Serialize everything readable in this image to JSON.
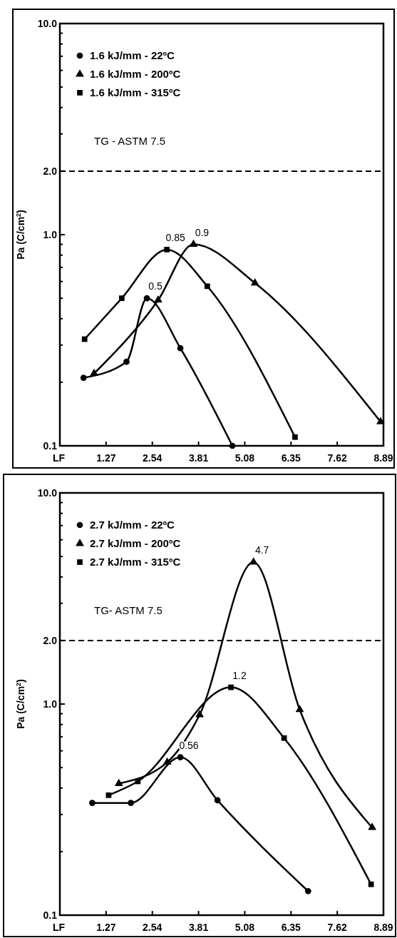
{
  "chart_data": [
    {
      "type": "line",
      "xlabel": "LF",
      "ylabel": "Pa (C/cm$^{2}$)",
      "log": "y",
      "xlim": [
        0,
        8.89
      ],
      "ylim": [
        0.1,
        10
      ],
      "xticks": [
        1.27,
        2.54,
        3.81,
        5.08,
        6.35,
        7.62,
        8.89
      ],
      "yticks": [
        0.1,
        {
          "value": 0.2,
          "label": null
        },
        {
          "value": 0.3,
          "label": null
        },
        {
          "value": 0.4,
          "label": null
        },
        {
          "value": 0.5,
          "label": null
        },
        {
          "value": 0.6,
          "label": null
        },
        {
          "value": 0.7,
          "label": null
        },
        {
          "value": 0.8,
          "label": null
        },
        {
          "value": 0.9,
          "label": null
        },
        {
          "value": 1,
          "label": "1.0"
        },
        {
          "value": 2,
          "label": "2.0"
        },
        {
          "value": 3,
          "label": null
        },
        {
          "value": 4,
          "label": null
        },
        {
          "value": 5,
          "label": null
        },
        {
          "value": 6,
          "label": null
        },
        {
          "value": 7,
          "label": null
        },
        {
          "value": 8,
          "label": null
        },
        {
          "value": 9,
          "label": null
        },
        {
          "value": 10,
          "label": "10.0"
        }
      ],
      "legend": "top left",
      "grid": false,
      "series": [
        {
          "name": "1.6 kJ/mm - 22ºC",
          "color": "#000000",
          "marker": "circle",
          "x": [
            0.65,
            1.83,
            2.39,
            3.31,
            4.74
          ],
          "values": [
            0.21,
            0.25,
            0.5,
            0.29,
            0.1
          ]
        },
        {
          "name": "1.6 kJ/mm - 200ºC",
          "color": "#000000",
          "marker": "triangle",
          "x": [
            0.94,
            2.7,
            3.67,
            5.36,
            8.81
          ],
          "values": [
            0.22,
            0.49,
            0.9,
            0.59,
            0.13
          ]
        },
        {
          "name": "1.6 kJ/mm - 315ºC",
          "color": "#000000",
          "marker": "square",
          "x": [
            0.68,
            1.7,
            2.94,
            4.05,
            6.46
          ],
          "values": [
            0.32,
            0.5,
            0.85,
            0.57,
            0.11
          ]
        }
      ],
      "ref_lines": [
        {
          "axis": "y",
          "value": 2,
          "line_style": "dashed",
          "color": "#000000"
        }
      ],
      "annotations": [
        "TG - ASTM 7.5",
        {
          "text": "0.5",
          "x": 2.39,
          "y": 0.5
        },
        {
          "text": "0.85",
          "x": 2.94,
          "y": 0.85
        },
        {
          "text": "0.9",
          "x": 3.67,
          "y": 0.9
        }
      ]
    },
    {
      "type": "line",
      "xlabel": "LF",
      "ylabel": "Pa (C/cm$^{2}$)",
      "log": "y",
      "xlim": [
        0,
        8.89
      ],
      "ylim": [
        0.1,
        10
      ],
      "xticks": [
        1.27,
        2.54,
        3.81,
        5.08,
        6.35,
        7.62,
        8.89
      ],
      "yticks": [
        0.1,
        {
          "value": 0.2,
          "label": null
        },
        {
          "value": 0.3,
          "label": null
        },
        {
          "value": 0.4,
          "label": null
        },
        {
          "value": 0.5,
          "label": null
        },
        {
          "value": 0.6,
          "label": null
        },
        {
          "value": 0.7,
          "label": null
        },
        {
          "value": 0.8,
          "label": null
        },
        {
          "value": 0.9,
          "label": null
        },
        {
          "value": 1,
          "label": "1.0"
        },
        {
          "value": 2,
          "label": "2.0"
        },
        {
          "value": 3,
          "label": null
        },
        {
          "value": 4,
          "label": null
        },
        {
          "value": 5,
          "label": null
        },
        {
          "value": 6,
          "label": null
        },
        {
          "value": 7,
          "label": null
        },
        {
          "value": 8,
          "label": null
        },
        {
          "value": 9,
          "label": null
        },
        {
          "value": 10,
          "label": "10.0"
        }
      ],
      "legend": "top left",
      "grid": false,
      "series": [
        {
          "name": "2.7 kJ/mm - 22ºC",
          "color": "#000000",
          "marker": "circle",
          "x": [
            0.89,
            1.95,
            3.31,
            4.33,
            6.82
          ],
          "values": [
            0.34,
            0.34,
            0.56,
            0.35,
            0.13
          ]
        },
        {
          "name": "2.7 kJ/mm - 200ºC",
          "color": "#000000",
          "marker": "triangle",
          "x": [
            1.62,
            2.95,
            3.84,
            5.32,
            6.59,
            8.58
          ],
          "values": [
            0.42,
            0.53,
            0.89,
            4.7,
            0.94,
            0.26
          ]
        },
        {
          "name": "2.7 kJ/mm - 315ºC",
          "color": "#000000",
          "marker": "square",
          "x": [
            1.34,
            2.14,
            4.7,
            6.16,
            8.55
          ],
          "values": [
            0.37,
            0.43,
            1.2,
            0.69,
            0.14
          ]
        }
      ],
      "ref_lines": [
        {
          "axis": "y",
          "value": 2,
          "line_style": "dashed",
          "color": "#000000"
        }
      ],
      "annotations": [
        "TG- ASTM 7.5",
        {
          "text": "0.56",
          "x": 3.31,
          "y": 0.56
        },
        {
          "text": "4.7",
          "x": 5.32,
          "y": 4.7
        },
        {
          "text": "1.2",
          "x": 4.7,
          "y": 1.2
        }
      ]
    }
  ]
}
